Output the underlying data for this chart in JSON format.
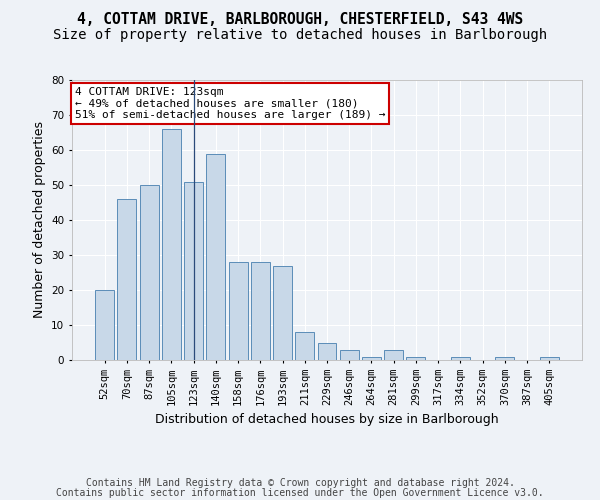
{
  "title1": "4, COTTAM DRIVE, BARLBOROUGH, CHESTERFIELD, S43 4WS",
  "title2": "Size of property relative to detached houses in Barlborough",
  "xlabel": "Distribution of detached houses by size in Barlborough",
  "ylabel": "Number of detached properties",
  "categories": [
    "52sqm",
    "70sqm",
    "87sqm",
    "105sqm",
    "123sqm",
    "140sqm",
    "158sqm",
    "176sqm",
    "193sqm",
    "211sqm",
    "229sqm",
    "246sqm",
    "264sqm",
    "281sqm",
    "299sqm",
    "317sqm",
    "334sqm",
    "352sqm",
    "370sqm",
    "387sqm",
    "405sqm"
  ],
  "values": [
    20,
    46,
    50,
    66,
    51,
    59,
    28,
    28,
    27,
    8,
    5,
    3,
    1,
    3,
    1,
    0,
    1,
    0,
    1,
    0,
    1
  ],
  "bar_color": "#c8d8e8",
  "bar_edge_color": "#5b8db8",
  "highlight_index": 4,
  "highlight_line_color": "#2a4a7a",
  "ylim": [
    0,
    80
  ],
  "yticks": [
    0,
    10,
    20,
    30,
    40,
    50,
    60,
    70,
    80
  ],
  "annotation_line1": "4 COTTAM DRIVE: 123sqm",
  "annotation_line2": "← 49% of detached houses are smaller (180)",
  "annotation_line3": "51% of semi-detached houses are larger (189) →",
  "annotation_box_color": "#ffffff",
  "annotation_box_edge_color": "#cc0000",
  "footer1": "Contains HM Land Registry data © Crown copyright and database right 2024.",
  "footer2": "Contains public sector information licensed under the Open Government Licence v3.0.",
  "background_color": "#eef2f7",
  "grid_color": "#ffffff",
  "title1_fontsize": 10.5,
  "title2_fontsize": 10,
  "axis_label_fontsize": 9,
  "tick_fontsize": 7.5,
  "footer_fontsize": 7,
  "annotation_fontsize": 8
}
